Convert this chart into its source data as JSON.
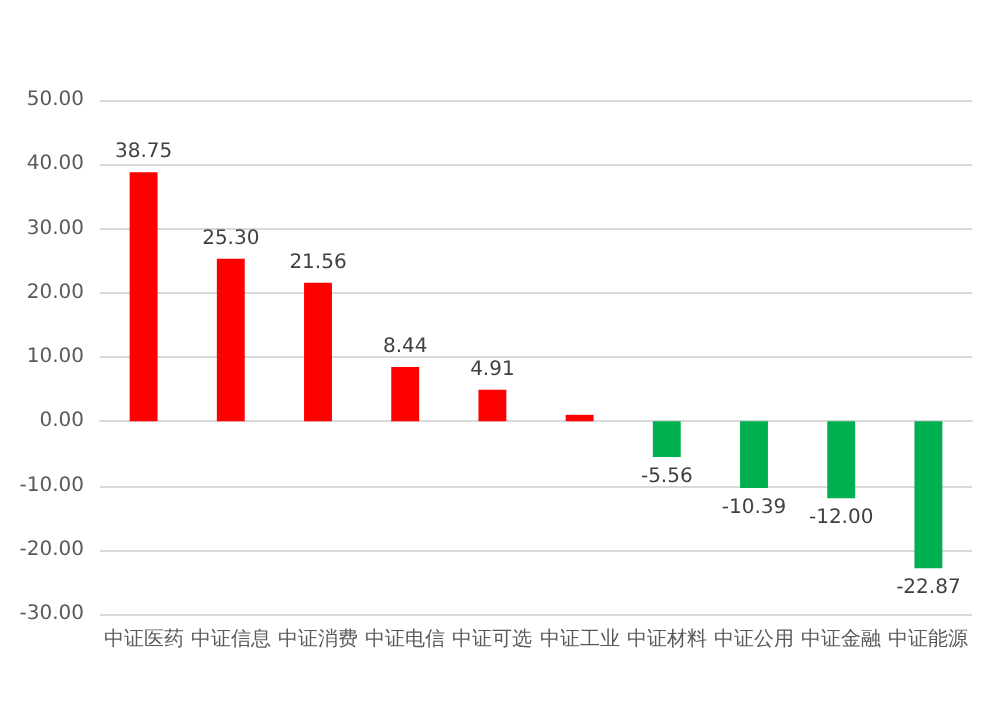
{
  "chart_data": {
    "type": "bar",
    "categories": [
      "中证医药",
      "中证信息",
      "中证消费",
      "中证电信",
      "中证可选",
      "中证工业",
      "中证材料",
      "中证公用",
      "中证金融",
      "中证能源"
    ],
    "values": [
      38.75,
      25.3,
      21.56,
      8.44,
      4.91,
      1.0,
      -5.56,
      -10.39,
      -12.0,
      -22.87
    ],
    "value_labels": [
      "38.75",
      "25.30",
      "21.56",
      "8.44",
      "4.91",
      null,
      "-5.56",
      "-10.39",
      "-12.00",
      "-22.87"
    ],
    "colors": [
      "#ff0000",
      "#ff0000",
      "#ff0000",
      "#ff0000",
      "#ff0000",
      "#ff0000",
      "#00b050",
      "#00b050",
      "#00b050",
      "#00b050"
    ],
    "ylim": [
      -30,
      50
    ],
    "yticks": [
      {
        "value": -30,
        "label": "-30.00"
      },
      {
        "value": -20,
        "label": "-20.00"
      },
      {
        "value": -10,
        "label": "-10.00"
      },
      {
        "value": 0,
        "label": "0.00"
      },
      {
        "value": 10,
        "label": "10.00"
      },
      {
        "value": 20,
        "label": "20.00"
      },
      {
        "value": 30,
        "label": "30.00"
      },
      {
        "value": 40,
        "label": "40.00"
      },
      {
        "value": 50,
        "label": "50.00"
      }
    ],
    "grid": "y"
  }
}
